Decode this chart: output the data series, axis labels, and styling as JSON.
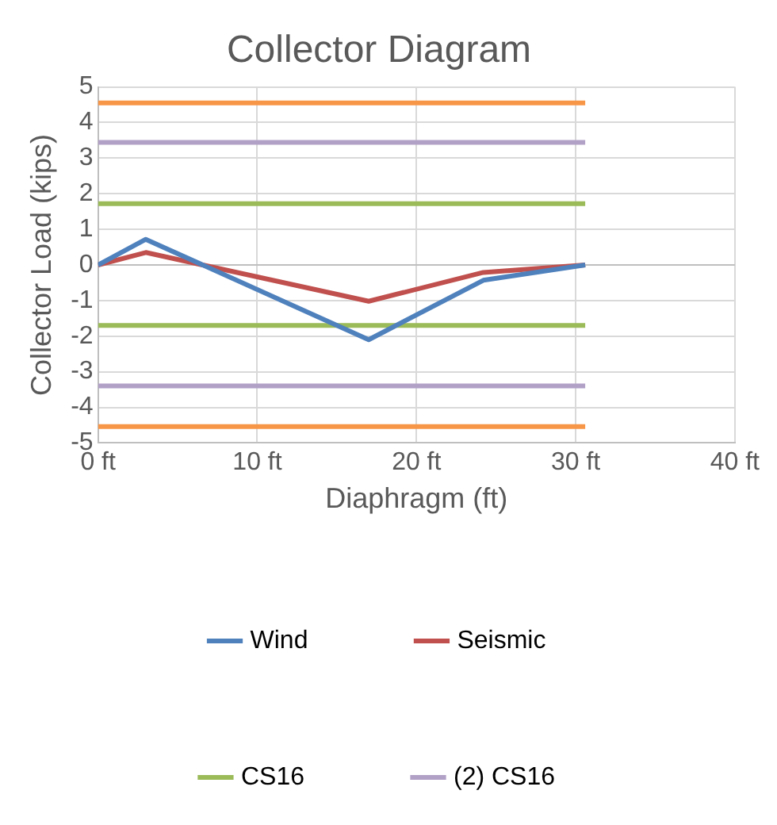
{
  "chart_data": {
    "type": "line",
    "title": "Collector Diagram",
    "xlabel": "Diaphragm (ft)",
    "ylabel": "Collector Load (kips)",
    "xlim": [
      0,
      40
    ],
    "xticks": [
      {
        "value": 0,
        "label": "0 ft"
      },
      {
        "value": 10,
        "label": "10 ft"
      },
      {
        "value": 20,
        "label": "20 ft"
      },
      {
        "value": 30,
        "label": "30 ft"
      },
      {
        "value": 40,
        "label": "40 ft"
      }
    ],
    "ylim": [
      -5,
      5
    ],
    "yticks": [
      -5,
      -4,
      -3,
      -2,
      -1,
      0,
      1,
      2,
      3,
      4,
      5
    ],
    "grid": true,
    "legend": "bottom",
    "marker": "none",
    "line_style": "solid",
    "series": [
      {
        "name": "Wind",
        "color": "#4f81bd",
        "x": [
          0,
          3,
          17,
          24.2,
          30.6
        ],
        "values": [
          0,
          0.72,
          -2.1,
          -0.43,
          0
        ]
      },
      {
        "name": "Seismic",
        "color": "#c0504d",
        "x": [
          0,
          3,
          17,
          24.2,
          30.6
        ],
        "values": [
          0,
          0.35,
          -1.02,
          -0.21,
          0
        ]
      },
      {
        "name": "CS16",
        "color": "#9bbb59",
        "x": [
          0,
          30.6
        ],
        "values": [
          1.72,
          1.72
        ]
      },
      {
        "name": "(2) CS16",
        "color": "#b2a1c7",
        "x": [
          0,
          30.6
        ],
        "values": [
          3.44,
          3.44
        ]
      },
      {
        "color": "#f79646",
        "x": [
          0,
          30.6
        ],
        "values": [
          4.55,
          4.55
        ]
      },
      {
        "color": "#9bbb59",
        "x": [
          0,
          30.6
        ],
        "values": [
          -1.7,
          -1.7
        ]
      },
      {
        "color": "#b2a1c7",
        "x": [
          0,
          30.6
        ],
        "values": [
          -3.4,
          -3.4
        ]
      },
      {
        "color": "#f79646",
        "x": [
          0,
          30.6
        ],
        "values": [
          -4.54,
          -4.54
        ]
      }
    ]
  }
}
